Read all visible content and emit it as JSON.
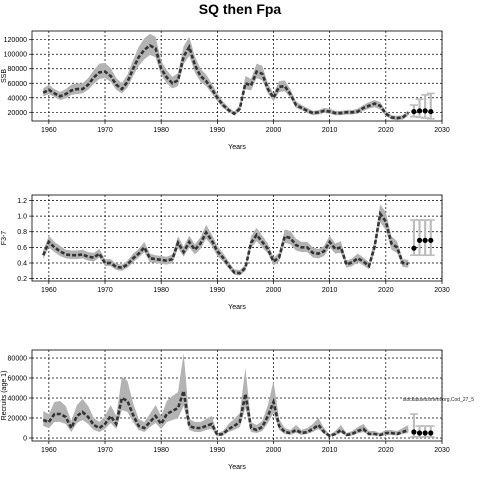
{
  "title": "SQ then Fpa",
  "source_note": "stockassessment.org,Cod_27_5",
  "chart_data": [
    {
      "type": "line",
      "xlabel": "Years",
      "ylabel": "SSB",
      "xlim": [
        1957,
        2030
      ],
      "ylim": [
        8000,
        132000
      ],
      "xticks": [
        1960,
        1970,
        1980,
        1990,
        2000,
        2010,
        2020,
        2030
      ],
      "yticks": [
        20000,
        40000,
        60000,
        80000,
        100000,
        120000
      ],
      "grid": true,
      "years": [
        1959,
        1960,
        1961,
        1962,
        1963,
        1964,
        1965,
        1966,
        1967,
        1968,
        1969,
        1970,
        1971,
        1972,
        1973,
        1974,
        1975,
        1976,
        1977,
        1978,
        1979,
        1980,
        1981,
        1982,
        1983,
        1984,
        1985,
        1986,
        1987,
        1988,
        1989,
        1990,
        1991,
        1992,
        1993,
        1994,
        1995,
        1996,
        1997,
        1998,
        1999,
        2000,
        2001,
        2002,
        2003,
        2004,
        2005,
        2006,
        2007,
        2008,
        2009,
        2010,
        2011,
        2012,
        2013,
        2014,
        2015,
        2016,
        2017,
        2018,
        2019,
        2020,
        2021,
        2022,
        2023,
        2024
      ],
      "estimate": [
        47000,
        51000,
        46000,
        42000,
        45000,
        50000,
        52000,
        52000,
        58000,
        68000,
        75000,
        76000,
        70000,
        58000,
        52000,
        62000,
        80000,
        96000,
        106000,
        112000,
        108000,
        80000,
        68000,
        60000,
        64000,
        97000,
        110000,
        85000,
        70000,
        63000,
        52000,
        40000,
        30000,
        23000,
        18000,
        25000,
        60000,
        57000,
        76000,
        73000,
        52000,
        40000,
        55000,
        56000,
        45000,
        30000,
        26000,
        22000,
        19000,
        20000,
        22000,
        21000,
        19000,
        19000,
        20000,
        20000,
        21000,
        26000,
        29000,
        32000,
        29000,
        18000,
        13000,
        12000,
        13000,
        19000
      ],
      "lower": [
        42000,
        45000,
        41000,
        37000,
        39000,
        44000,
        45000,
        46000,
        51000,
        59000,
        66000,
        67000,
        62000,
        51000,
        46000,
        54000,
        70000,
        84000,
        93000,
        99000,
        96000,
        71000,
        60000,
        53000,
        56000,
        86000,
        98000,
        75000,
        62000,
        56000,
        46000,
        35000,
        26000,
        20000,
        16000,
        21000,
        52000,
        50000,
        67000,
        64000,
        46000,
        35000,
        48000,
        49000,
        40000,
        26000,
        23000,
        19000,
        16000,
        17000,
        19000,
        18000,
        16000,
        16000,
        17000,
        17000,
        18000,
        22000,
        25000,
        27000,
        24000,
        15000,
        10000,
        9000,
        10000,
        15000
      ],
      "upper": [
        53000,
        58000,
        52000,
        48000,
        52000,
        58000,
        60000,
        60000,
        67000,
        78000,
        87000,
        88000,
        81000,
        67000,
        60000,
        72000,
        92000,
        110000,
        122000,
        128000,
        124000,
        91000,
        78000,
        69000,
        74000,
        111000,
        124000,
        97000,
        80000,
        72000,
        60000,
        46000,
        35000,
        27000,
        21000,
        30000,
        70000,
        66000,
        87000,
        84000,
        60000,
        46000,
        63000,
        64000,
        52000,
        35000,
        30000,
        26000,
        22000,
        23000,
        26000,
        25000,
        22000,
        22000,
        23000,
        23000,
        25000,
        30000,
        34000,
        37000,
        34000,
        22000,
        16000,
        15000,
        16000,
        23000
      ],
      "forecast": {
        "years": [
          2025,
          2026,
          2027,
          2028
        ],
        "median": [
          21000,
          22000,
          22000,
          21000
        ],
        "lower": [
          14000,
          13000,
          12000,
          11000
        ],
        "upper": [
          30000,
          38000,
          44000,
          46000
        ]
      }
    },
    {
      "type": "line",
      "xlabel": "Years",
      "ylabel": "F3-7",
      "xlim": [
        1957,
        2030
      ],
      "ylim": [
        0.17,
        1.27
      ],
      "xticks": [
        1960,
        1970,
        1980,
        1990,
        2000,
        2010,
        2020,
        2030
      ],
      "yticks": [
        0.2,
        0.4,
        0.6,
        0.8,
        1.0,
        1.2
      ],
      "grid": true,
      "years": [
        1959,
        1960,
        1961,
        1962,
        1963,
        1964,
        1965,
        1966,
        1967,
        1968,
        1969,
        1970,
        1971,
        1972,
        1973,
        1974,
        1975,
        1976,
        1977,
        1978,
        1979,
        1980,
        1981,
        1982,
        1983,
        1984,
        1985,
        1986,
        1987,
        1988,
        1989,
        1990,
        1991,
        1992,
        1993,
        1994,
        1995,
        1996,
        1997,
        1998,
        1999,
        2000,
        2001,
        2002,
        2003,
        2004,
        2005,
        2006,
        2007,
        2008,
        2009,
        2010,
        2011,
        2012,
        2013,
        2014,
        2015,
        2016,
        2017,
        2018,
        2019,
        2020,
        2021,
        2022,
        2023,
        2024
      ],
      "estimate": [
        0.5,
        0.67,
        0.6,
        0.55,
        0.51,
        0.5,
        0.5,
        0.51,
        0.48,
        0.47,
        0.52,
        0.4,
        0.4,
        0.35,
        0.34,
        0.38,
        0.46,
        0.52,
        0.6,
        0.46,
        0.45,
        0.44,
        0.43,
        0.45,
        0.66,
        0.54,
        0.67,
        0.57,
        0.65,
        0.79,
        0.69,
        0.55,
        0.47,
        0.37,
        0.28,
        0.27,
        0.34,
        0.66,
        0.76,
        0.67,
        0.58,
        0.42,
        0.47,
        0.74,
        0.72,
        0.63,
        0.6,
        0.6,
        0.53,
        0.52,
        0.55,
        0.67,
        0.58,
        0.6,
        0.38,
        0.41,
        0.46,
        0.42,
        0.36,
        0.61,
        1.03,
        0.93,
        0.65,
        0.6,
        0.4,
        0.39
      ],
      "lower": [
        0.45,
        0.6,
        0.54,
        0.49,
        0.46,
        0.45,
        0.45,
        0.46,
        0.43,
        0.42,
        0.47,
        0.36,
        0.36,
        0.31,
        0.3,
        0.34,
        0.41,
        0.47,
        0.54,
        0.41,
        0.4,
        0.39,
        0.38,
        0.4,
        0.59,
        0.48,
        0.6,
        0.51,
        0.58,
        0.71,
        0.62,
        0.49,
        0.42,
        0.33,
        0.25,
        0.24,
        0.3,
        0.59,
        0.68,
        0.6,
        0.52,
        0.37,
        0.42,
        0.66,
        0.64,
        0.56,
        0.54,
        0.54,
        0.47,
        0.46,
        0.49,
        0.6,
        0.52,
        0.53,
        0.34,
        0.36,
        0.41,
        0.37,
        0.32,
        0.54,
        0.92,
        0.82,
        0.57,
        0.53,
        0.35,
        0.34
      ],
      "upper": [
        0.56,
        0.75,
        0.67,
        0.62,
        0.57,
        0.56,
        0.56,
        0.57,
        0.54,
        0.53,
        0.58,
        0.45,
        0.45,
        0.39,
        0.38,
        0.43,
        0.52,
        0.58,
        0.67,
        0.52,
        0.5,
        0.49,
        0.48,
        0.51,
        0.74,
        0.61,
        0.75,
        0.64,
        0.73,
        0.89,
        0.77,
        0.62,
        0.53,
        0.42,
        0.32,
        0.31,
        0.38,
        0.74,
        0.85,
        0.75,
        0.65,
        0.47,
        0.53,
        0.83,
        0.81,
        0.71,
        0.67,
        0.67,
        0.6,
        0.58,
        0.62,
        0.75,
        0.65,
        0.68,
        0.43,
        0.46,
        0.52,
        0.47,
        0.41,
        0.69,
        1.15,
        1.05,
        0.74,
        0.68,
        0.45,
        0.44
      ],
      "forecast": {
        "years": [
          2025,
          2026,
          2027,
          2028
        ],
        "median": [
          0.59,
          0.69,
          0.69,
          0.69
        ],
        "lower": [
          0.5,
          0.5,
          0.5,
          0.5
        ],
        "upper": [
          0.95,
          0.95,
          0.95,
          0.95
        ]
      }
    },
    {
      "type": "line",
      "xlabel": "Years",
      "ylabel": "Recruits (age 1)",
      "xlim": [
        1957,
        2030
      ],
      "ylim": [
        -3000,
        88000
      ],
      "xticks": [
        1960,
        1970,
        1980,
        1990,
        2000,
        2010,
        2020,
        2030
      ],
      "yticks": [
        0,
        20000,
        40000,
        60000,
        80000
      ],
      "grid": true,
      "years": [
        1959,
        1960,
        1961,
        1962,
        1963,
        1964,
        1965,
        1966,
        1967,
        1968,
        1969,
        1970,
        1971,
        1972,
        1973,
        1974,
        1975,
        1976,
        1977,
        1978,
        1979,
        1980,
        1981,
        1982,
        1983,
        1984,
        1985,
        1986,
        1987,
        1988,
        1989,
        1990,
        1991,
        1992,
        1993,
        1994,
        1995,
        1996,
        1997,
        1998,
        1999,
        2000,
        2001,
        2002,
        2003,
        2004,
        2005,
        2006,
        2007,
        2008,
        2009,
        2010,
        2011,
        2012,
        2013,
        2014,
        2015,
        2016,
        2017,
        2018,
        2019,
        2020,
        2021,
        2022,
        2023,
        2024
      ],
      "estimate": [
        18000,
        16000,
        24000,
        24000,
        21000,
        10000,
        22000,
        26000,
        21000,
        13000,
        10000,
        14000,
        22000,
        14000,
        40000,
        37000,
        23000,
        12000,
        10000,
        16000,
        22000,
        14000,
        24000,
        27000,
        30000,
        47000,
        12000,
        10000,
        10000,
        12000,
        14000,
        3000,
        4000,
        9000,
        12000,
        16000,
        44000,
        10000,
        8000,
        11000,
        22000,
        36000,
        12000,
        6000,
        5000,
        8000,
        5000,
        6000,
        9000,
        13000,
        6000,
        2000,
        4000,
        8000,
        3000,
        4000,
        7000,
        9000,
        4000,
        4000,
        3000,
        5000,
        5000,
        4000,
        6000,
        8000
      ],
      "lower": [
        12000,
        10000,
        16000,
        16000,
        14000,
        6000,
        15000,
        18000,
        14000,
        8000,
        6000,
        9000,
        15000,
        9000,
        28000,
        26000,
        16000,
        8000,
        6000,
        11000,
        15000,
        9000,
        16000,
        18000,
        20000,
        32000,
        8000,
        6000,
        6000,
        8000,
        9000,
        1500,
        2500,
        6000,
        8000,
        11000,
        30000,
        6000,
        5000,
        7000,
        15000,
        25000,
        8000,
        4000,
        3000,
        5000,
        3000,
        4000,
        6000,
        9000,
        4000,
        1000,
        2500,
        5000,
        2000,
        2500,
        4500,
        6000,
        2500,
        2500,
        2000,
        3000,
        3000,
        2500,
        4000,
        5000
      ],
      "upper": [
        27000,
        24000,
        36000,
        37000,
        32000,
        17000,
        33000,
        39000,
        32000,
        20000,
        16000,
        22000,
        33000,
        22000,
        61000,
        57000,
        35000,
        19000,
        16000,
        24000,
        33000,
        22000,
        37000,
        42000,
        46000,
        85000,
        19000,
        16000,
        16000,
        19000,
        22000,
        5000,
        7000,
        14000,
        19000,
        25000,
        70000,
        16000,
        13000,
        17000,
        33000,
        57000,
        19000,
        10000,
        8000,
        13000,
        8000,
        10000,
        14000,
        20000,
        10000,
        3500,
        7000,
        13000,
        5000,
        7000,
        11000,
        14000,
        7000,
        7000,
        5000,
        8000,
        8000,
        7000,
        10000,
        13000
      ],
      "forecast": {
        "years": [
          2025,
          2026,
          2027,
          2028
        ],
        "median": [
          6000,
          5000,
          5000,
          5000
        ],
        "lower": [
          1000,
          1000,
          1000,
          1000
        ],
        "upper": [
          24000,
          12000,
          12000,
          12000
        ]
      }
    }
  ]
}
